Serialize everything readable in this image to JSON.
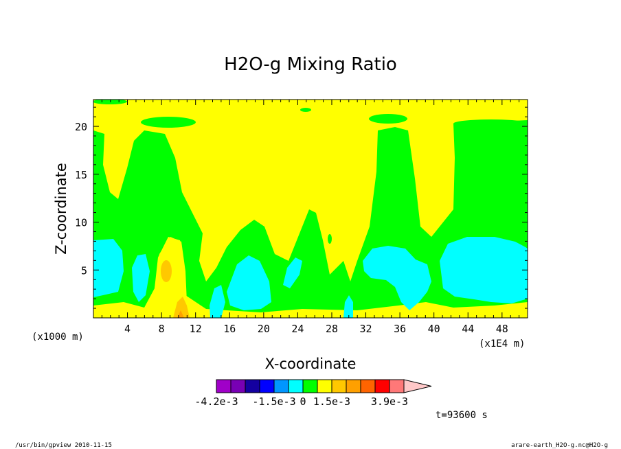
{
  "chart_data": {
    "type": "heatmap",
    "title": "H2O-g Mixing Ratio",
    "xlabel": "X-coordinate",
    "ylabel": "Z-coordinate",
    "x_unit_note": "(x1E4 m)",
    "y_unit_note": "(x1000 m)",
    "xlim": [
      0,
      51
    ],
    "ylim": [
      0,
      22.8
    ],
    "x_ticks": [
      4,
      8,
      12,
      16,
      20,
      24,
      28,
      32,
      36,
      40,
      44,
      48
    ],
    "y_ticks": [
      5,
      10,
      15,
      20
    ],
    "colorbar": {
      "colors": [
        "#a000c8",
        "#7800b4",
        "#1400a0",
        "#0000ff",
        "#0096ff",
        "#00ffff",
        "#00ff00",
        "#ffff00",
        "#ffc800",
        "#ffa000",
        "#ff6400",
        "#ff0000",
        "#ff7878",
        "#ffc8c8"
      ],
      "labels": [
        {
          "text": "-4.2e-3",
          "index": 0
        },
        {
          "text": "-1.5e-3",
          "index": 4
        },
        {
          "text": "0",
          "index": 6
        },
        {
          "text": "1.5e-3",
          "index": 8
        },
        {
          "text": "3.9e-3",
          "index": 12
        }
      ]
    },
    "regions": [
      {
        "level": "green",
        "desc": "background"
      },
      {
        "level": "yellow",
        "desc": "upper layer and central plume"
      },
      {
        "level": "cyan",
        "desc": "low-level moist cells"
      },
      {
        "level": "orange",
        "desc": "small pockets near x=8-10"
      }
    ]
  },
  "time_label": "t=93600 s",
  "footer_left": "/usr/bin/gpview  2010-11-15",
  "footer_right": "arare-earth_H2O-g.nc@H2O-g"
}
